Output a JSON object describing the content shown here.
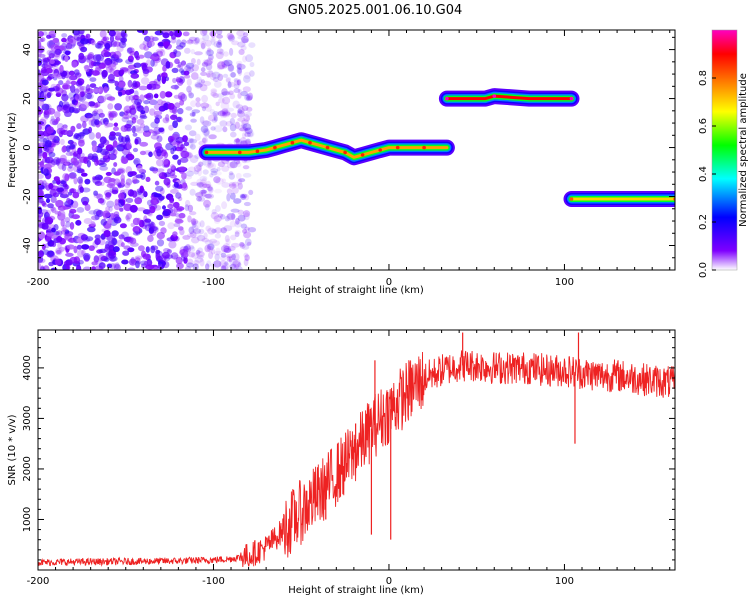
{
  "figure": {
    "title": "GN05.2025.001.06.10.G04"
  },
  "chart_data": [
    {
      "type": "heatmap",
      "title": "GN05.2025.001.06.10.G04",
      "xlabel": "Height of straight line (km)",
      "ylabel": "Frequency (Hz)",
      "xlim": [
        -200,
        163
      ],
      "ylim": [
        -50,
        48
      ],
      "x_ticks": [
        -200,
        -100,
        0,
        100
      ],
      "y_ticks": [
        -40,
        -20,
        0,
        20,
        40
      ],
      "grid": false,
      "noise_region": {
        "x_range": [
          -200,
          -78
        ],
        "y_range": [
          -50,
          48
        ],
        "level": 0.1
      },
      "ridges": [
        {
          "x": [
            -104,
            -95,
            -85,
            -80,
            -75,
            -70,
            -65,
            -60,
            -55,
            -50,
            -45,
            -40,
            -35,
            -30,
            -25,
            -20,
            -15,
            -10,
            -5,
            0,
            5,
            10,
            20,
            33
          ],
          "y": [
            -2,
            -2,
            -2,
            -2,
            -1.5,
            -1,
            0,
            1,
            2,
            3,
            2,
            1,
            0,
            -1,
            -2,
            -4,
            -3,
            -2,
            -1,
            0,
            0,
            0,
            0,
            0
          ],
          "amplitude": 0.75
        },
        {
          "x": [
            33,
            55,
            60,
            80,
            104
          ],
          "y": [
            20,
            20,
            21,
            20,
            20
          ],
          "amplitude": 0.9
        },
        {
          "x": [
            104,
            130,
            163
          ],
          "y": [
            -21,
            -21,
            -21
          ],
          "amplitude": 0.7
        }
      ],
      "colorbar": {
        "label": "Normalized spectral amplitude",
        "range": [
          0,
          1
        ],
        "ticks": [
          "0.0",
          "0.2",
          "0.4",
          "0.6",
          "0.8"
        ],
        "colors": [
          "#ffffff",
          "#7f00ff",
          "#0000ff",
          "#00ffff",
          "#00ff00",
          "#ffff00",
          "#ff8000",
          "#ff0000",
          "#ff00c0"
        ]
      }
    },
    {
      "type": "line",
      "xlabel": "Height of straight line (km)",
      "ylabel": "SNR (10 * v/v)",
      "xlim": [
        -200,
        163
      ],
      "ylim": [
        0,
        4750
      ],
      "x_ticks": [
        -200,
        -100,
        0,
        100
      ],
      "y_ticks": [
        1000,
        2000,
        3000,
        4000
      ],
      "grid": false,
      "series": [
        {
          "color": "#ee2222",
          "x": [
            -200,
            -180,
            -160,
            -140,
            -120,
            -100,
            -90,
            -80,
            -70,
            -60,
            -50,
            -40,
            -30,
            -20,
            -10,
            0,
            10,
            20,
            30,
            40,
            50,
            60,
            70,
            80,
            90,
            100,
            110,
            120,
            130,
            140,
            150,
            163
          ],
          "y": [
            150,
            160,
            165,
            170,
            180,
            200,
            220,
            280,
            450,
            800,
            1150,
            1500,
            1900,
            2300,
            2800,
            3150,
            3500,
            3800,
            3950,
            4050,
            4050,
            4000,
            4000,
            4000,
            3950,
            3950,
            3900,
            3850,
            3850,
            3800,
            3750,
            3700
          ],
          "spikes": [
            {
              "x": -8,
              "y": 4150
            },
            {
              "x": -10,
              "y": 700
            },
            {
              "x": -36,
              "y": 1000
            },
            {
              "x": -19,
              "y": 2900
            },
            {
              "x": 1,
              "y": 600
            },
            {
              "x": 42,
              "y": 4700
            },
            {
              "x": 106,
              "y": 2500
            },
            {
              "x": 108,
              "y": 4700
            }
          ]
        }
      ]
    }
  ]
}
